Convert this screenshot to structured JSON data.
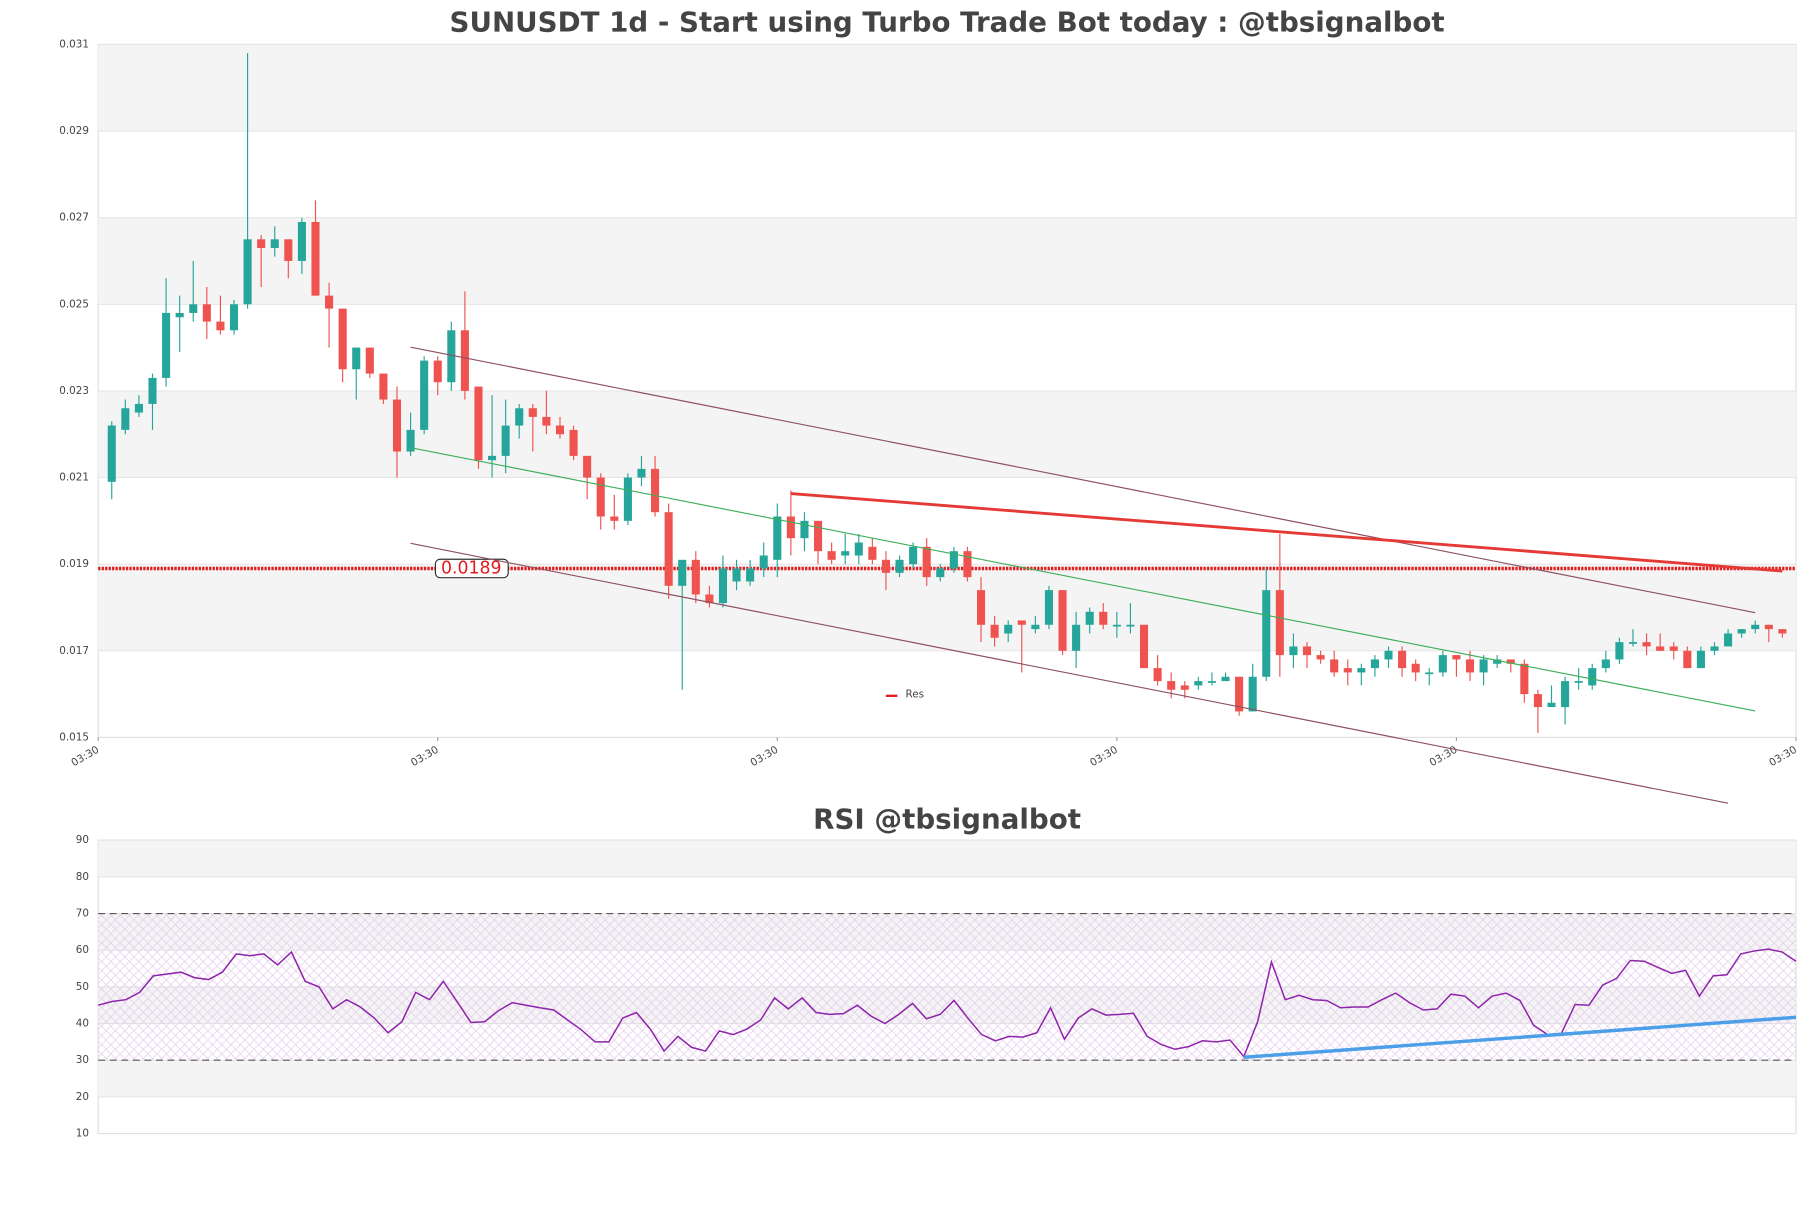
{
  "chart_data": [
    {
      "type": "candlestick",
      "title": "SUNUSDT 1d - Start using Turbo Trade Bot today : @tbsignalbot",
      "up_color": "#26a69a",
      "down_color": "#ef5350",
      "open": [
        0.0209,
        0.0221,
        0.0225,
        0.0227,
        0.0233,
        0.0247,
        0.0248,
        0.025,
        0.0246,
        0.0244,
        0.025,
        0.0265,
        0.0263,
        0.0265,
        0.026,
        0.0269,
        0.0252,
        0.0249,
        0.0235,
        0.024,
        0.0234,
        0.0228,
        0.0216,
        0.0221,
        0.0237,
        0.0232,
        0.0244,
        0.0231,
        0.0214,
        0.0215,
        0.0222,
        0.0226,
        0.0224,
        0.0222,
        0.0221,
        0.0215,
        0.021,
        0.0201,
        0.02,
        0.021,
        0.0212,
        0.0202,
        0.0185,
        0.0191,
        0.0183,
        0.0181,
        0.0186,
        0.0186,
        0.0189,
        0.0191,
        0.0201,
        0.0196,
        0.02,
        0.0193,
        0.0192,
        0.0192,
        0.0194,
        0.0191,
        0.0188,
        0.019,
        0.0194,
        0.0187,
        0.0189,
        0.0193,
        0.0184,
        0.0176,
        0.0174,
        0.0177,
        0.0175,
        0.0176,
        0.0184,
        0.017,
        0.0176,
        0.0179,
        0.0176,
        0.0176,
        0.0176,
        0.0166,
        0.0163,
        0.0162,
        0.0162,
        0.0163,
        0.0163,
        0.0164,
        0.0156,
        0.0164,
        0.0184,
        0.0169,
        0.0171,
        0.0169,
        0.0168,
        0.0166,
        0.0165,
        0.0166,
        0.0168,
        0.017,
        0.0167,
        0.0165,
        0.0165,
        0.0169,
        0.0168,
        0.0165,
        0.0167,
        0.0168,
        0.0167,
        0.016,
        0.0157,
        0.0157,
        0.0163,
        0.0162,
        0.0166,
        0.0168,
        0.0172,
        0.0172,
        0.0171,
        0.0171,
        0.017,
        0.0166,
        0.017,
        0.0171,
        0.0174,
        0.0175,
        0.0176,
        0.0175
      ],
      "high": [
        0.0223,
        0.0228,
        0.0229,
        0.0234,
        0.0256,
        0.0252,
        0.026,
        0.0254,
        0.0252,
        0.0251,
        0.0308,
        0.0266,
        0.0268,
        0.0265,
        0.027,
        0.0274,
        0.0255,
        0.0249,
        0.024,
        0.024,
        0.0234,
        0.0231,
        0.0225,
        0.0238,
        0.0238,
        0.0246,
        0.0253,
        0.0231,
        0.0229,
        0.0228,
        0.0227,
        0.0227,
        0.023,
        0.0224,
        0.0222,
        0.0215,
        0.0211,
        0.0206,
        0.0211,
        0.0215,
        0.0215,
        0.0204,
        0.0191,
        0.0193,
        0.0185,
        0.0192,
        0.0191,
        0.0191,
        0.0195,
        0.0204,
        0.0207,
        0.0202,
        0.02,
        0.0195,
        0.0197,
        0.0197,
        0.0196,
        0.0193,
        0.0192,
        0.0195,
        0.0196,
        0.019,
        0.0194,
        0.0194,
        0.0187,
        0.0178,
        0.0177,
        0.0177,
        0.0178,
        0.0185,
        0.0184,
        0.0179,
        0.018,
        0.0181,
        0.0179,
        0.0181,
        0.0176,
        0.0169,
        0.0165,
        0.0163,
        0.0164,
        0.0165,
        0.0165,
        0.0164,
        0.0167,
        0.0189,
        0.0197,
        0.0174,
        0.0172,
        0.017,
        0.017,
        0.0168,
        0.0167,
        0.0169,
        0.0171,
        0.0171,
        0.0168,
        0.0166,
        0.017,
        0.0169,
        0.017,
        0.0169,
        0.0169,
        0.0168,
        0.0168,
        0.0161,
        0.0162,
        0.0164,
        0.0166,
        0.0167,
        0.017,
        0.0173,
        0.0175,
        0.0174,
        0.0174,
        0.0172,
        0.0171,
        0.0171,
        0.0172,
        0.0175,
        0.0175,
        0.0177,
        0.0176,
        0.0175
      ],
      "low": [
        0.0205,
        0.022,
        0.0224,
        0.0221,
        0.0231,
        0.0239,
        0.0246,
        0.0242,
        0.0243,
        0.0243,
        0.0249,
        0.0254,
        0.0261,
        0.0256,
        0.0257,
        0.0252,
        0.024,
        0.0232,
        0.0228,
        0.0233,
        0.0227,
        0.021,
        0.0215,
        0.022,
        0.0229,
        0.023,
        0.0228,
        0.0212,
        0.021,
        0.0211,
        0.0219,
        0.0216,
        0.022,
        0.0219,
        0.0214,
        0.0205,
        0.0198,
        0.0198,
        0.0199,
        0.0208,
        0.0201,
        0.0182,
        0.0161,
        0.0181,
        0.018,
        0.018,
        0.0184,
        0.0185,
        0.0187,
        0.0187,
        0.0192,
        0.0193,
        0.019,
        0.019,
        0.019,
        0.019,
        0.019,
        0.0184,
        0.0187,
        0.0189,
        0.0185,
        0.0186,
        0.0188,
        0.0186,
        0.0172,
        0.0171,
        0.0172,
        0.0165,
        0.0174,
        0.0175,
        0.0169,
        0.0166,
        0.0174,
        0.0175,
        0.0173,
        0.0174,
        0.0166,
        0.0162,
        0.0159,
        0.0159,
        0.0161,
        0.0162,
        0.0163,
        0.0155,
        0.0156,
        0.0163,
        0.0164,
        0.0166,
        0.0166,
        0.0167,
        0.0164,
        0.0162,
        0.0162,
        0.0164,
        0.0166,
        0.0164,
        0.0163,
        0.0162,
        0.0164,
        0.0164,
        0.0163,
        0.0162,
        0.0166,
        0.0165,
        0.0158,
        0.0151,
        0.0157,
        0.0153,
        0.0161,
        0.0161,
        0.0165,
        0.0167,
        0.0171,
        0.0169,
        0.017,
        0.0168,
        0.0166,
        0.0166,
        0.0169,
        0.0171,
        0.0173,
        0.0174,
        0.0172,
        0.0173
      ],
      "close": [
        0.0222,
        0.0226,
        0.0227,
        0.0233,
        0.0248,
        0.0248,
        0.025,
        0.0246,
        0.0244,
        0.025,
        0.0265,
        0.0263,
        0.0265,
        0.026,
        0.0269,
        0.0252,
        0.0249,
        0.0235,
        0.024,
        0.0234,
        0.0228,
        0.0216,
        0.0221,
        0.0237,
        0.0232,
        0.0244,
        0.023,
        0.0214,
        0.0215,
        0.0222,
        0.0226,
        0.0224,
        0.0222,
        0.022,
        0.0215,
        0.021,
        0.0201,
        0.02,
        0.021,
        0.0212,
        0.0202,
        0.0185,
        0.0191,
        0.0183,
        0.0181,
        0.0189,
        0.0189,
        0.0189,
        0.0192,
        0.0201,
        0.0196,
        0.02,
        0.0193,
        0.0191,
        0.0193,
        0.0195,
        0.0191,
        0.0188,
        0.0191,
        0.0194,
        0.0187,
        0.0189,
        0.0193,
        0.0187,
        0.0176,
        0.0173,
        0.0176,
        0.0176,
        0.0176,
        0.0184,
        0.017,
        0.0176,
        0.0179,
        0.0176,
        0.0176,
        0.0176,
        0.0166,
        0.0163,
        0.0161,
        0.0161,
        0.0163,
        0.0163,
        0.0164,
        0.0156,
        0.0164,
        0.0184,
        0.0169,
        0.0171,
        0.0169,
        0.0168,
        0.0165,
        0.0165,
        0.0166,
        0.0168,
        0.017,
        0.0166,
        0.0165,
        0.0165,
        0.0169,
        0.0168,
        0.0165,
        0.0168,
        0.0168,
        0.0167,
        0.016,
        0.0157,
        0.0158,
        0.0163,
        0.0163,
        0.0166,
        0.0168,
        0.0172,
        0.0172,
        0.0171,
        0.017,
        0.017,
        0.0166,
        0.017,
        0.0171,
        0.0174,
        0.0175,
        0.0176,
        0.0175,
        0.0174
      ],
      "xlim": [
        -1,
        124
      ],
      "xticks": [
        {
          "value": -1,
          "label": "03:30"
        },
        {
          "value": 24,
          "label": "03:30"
        },
        {
          "value": 49,
          "label": "03:30"
        },
        {
          "value": 74,
          "label": "03:30"
        },
        {
          "value": 99,
          "label": "03:30"
        },
        {
          "value": 124,
          "label": "03:30"
        }
      ],
      "ylim": [
        0.015,
        0.031
      ],
      "yticks": [
        0.015,
        0.017,
        0.019,
        0.021,
        0.023,
        0.025,
        0.027,
        0.029,
        0.031
      ],
      "trendlines": [
        {
          "x": [
            22,
            121
          ],
          "values": [
            0.02401,
            0.01788
          ],
          "color": "#8e5060",
          "width": 1
        },
        {
          "x": [
            22,
            119
          ],
          "values": [
            0.01948,
            0.01348
          ],
          "color": "#8e5060",
          "width": 1
        },
        {
          "x": [
            22,
            121
          ],
          "values": [
            0.02169,
            0.01561
          ],
          "color": "#3cae5a",
          "width": 1
        },
        {
          "x": [
            50,
            123
          ],
          "values": [
            0.02063,
            0.01884
          ],
          "color": "#e53935",
          "width": 2.5
        }
      ],
      "levels": [
        {
          "name": "Res",
          "value": 0.0189,
          "color": "#e31a1c"
        }
      ]
    },
    {
      "type": "line",
      "title": "RSI @tbsignalbot",
      "color": "#8e24aa",
      "values": [
        45,
        46,
        46.5,
        48.5,
        53,
        53.5,
        54,
        52.5,
        52,
        54,
        59,
        58.5,
        59,
        56,
        59.5,
        51.5,
        50,
        44,
        46.5,
        44.5,
        41.5,
        37.5,
        40.5,
        48.5,
        46.5,
        51.5,
        46,
        40.3,
        40.5,
        43.5,
        45.7,
        45,
        44.3,
        43.7,
        41,
        38.3,
        35,
        35,
        41.5,
        43,
        38.5,
        32.5,
        36.5,
        33.5,
        32.5,
        38,
        37,
        38.5,
        41,
        47,
        44,
        47,
        43,
        42.5,
        42.7,
        45,
        42,
        40,
        42.5,
        45.5,
        41.3,
        42.5,
        46.3,
        41.5,
        37,
        35.3,
        36.5,
        36.3,
        37.5,
        44.3,
        35.7,
        41.5,
        44,
        42.3,
        42.5,
        42.8,
        36.5,
        34.3,
        33,
        33.7,
        35.3,
        35,
        35.5,
        31,
        40.5,
        56.8,
        46.5,
        47.7,
        46.5,
        46.3,
        44.3,
        44.5,
        44.5,
        46.5,
        48.3,
        45.7,
        43.7,
        44,
        48,
        47.5,
        44.3,
        47.5,
        48.3,
        46.3,
        39.5,
        37,
        37.3,
        45.2,
        45,
        50.5,
        52.3,
        57.2,
        57,
        55.3,
        53.7,
        54.5,
        47.5,
        53,
        53.3,
        59,
        59.8,
        60.3,
        59.5,
        57
      ],
      "xlim": [
        0,
        123
      ],
      "ylim": [
        10,
        90
      ],
      "yticks": [
        10,
        20,
        30,
        40,
        50,
        60,
        70,
        80,
        90
      ],
      "hlines": [
        30,
        70
      ],
      "trendlines": [
        {
          "x": [
            83,
            123
          ],
          "values": [
            30.8,
            41.7
          ],
          "color": "#4a9fe8",
          "width": 3
        }
      ]
    }
  ]
}
